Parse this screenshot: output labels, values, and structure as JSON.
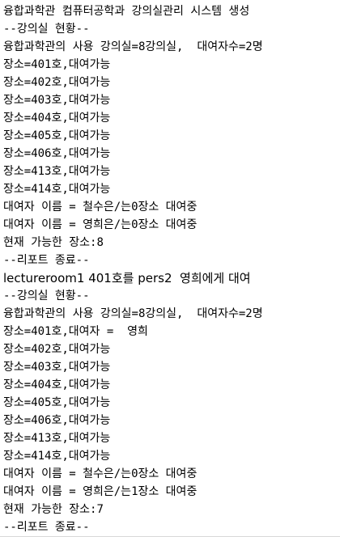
{
  "console": {
    "lines": [
      "융합과학관 컴퓨터공학과 강의실관리 시스템 생성",
      "--강의실 현황--",
      "융합과학관의 사용 강의실=8강의실,  대여자수=2명",
      "장소=401호,대여가능",
      "장소=402호,대여가능",
      "장소=403호,대여가능",
      "장소=404호,대여가능",
      "장소=405호,대여가능",
      "장소=406호,대여가능",
      "장소=413호,대여가능",
      "장소=414호,대여가능",
      "대여자 이름 = 철수은/는0장소 대여중",
      "대여자 이름 = 영희은/는0장소 대여중",
      "현재 가능한 장소:8",
      "--리포트 종료--",
      "lectureroom1 401호를 pers2  영희에게 대여",
      "--강의실 현황--",
      "융합과학관의 사용 강의실=8강의실,  대여자수=2명",
      "장소=401호,대여자 =  영희",
      "장소=402호,대여가능",
      "장소=403호,대여가능",
      "장소=404호,대여가능",
      "장소=405호,대여가능",
      "장소=406호,대여가능",
      "장소=413호,대여가능",
      "장소=414호,대여가능",
      "대여자 이름 = 철수은/는0장소 대여중",
      "대여자 이름 = 영희은/는1장소 대여중",
      "현재 가능한 장소:7",
      "--리포트 종료--"
    ]
  }
}
